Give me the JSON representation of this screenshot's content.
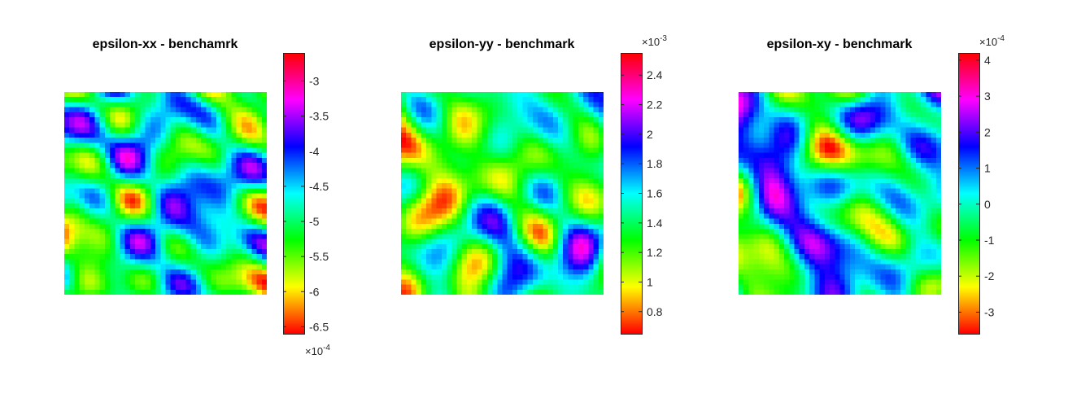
{
  "chart_data": [
    {
      "type": "heatmap",
      "title": "epsilon-xx - benchamrk",
      "grid": false,
      "colormap": "hsv",
      "seed": 11,
      "colorbar": {
        "lim": [
          -6.6,
          -2.6
        ],
        "ticks": [
          -3,
          -3.5,
          -4,
          -4.5,
          -5,
          -5.5,
          -6,
          -6.5
        ],
        "tick_labels": [
          "-3",
          "-3.5",
          "-4",
          "-4.5",
          "-5",
          "-5.5",
          "-6",
          "-6.5"
        ],
        "multiplier_base": "×10",
        "multiplier_exp": "-4",
        "multiplier_position": "bottom"
      },
      "values": null
    },
    {
      "type": "heatmap",
      "title": "epsilon-yy - benchmark",
      "grid": false,
      "colormap": "hsv",
      "seed": 23,
      "colorbar": {
        "lim": [
          0.65,
          2.55
        ],
        "ticks": [
          2.4,
          2.2,
          2,
          1.8,
          1.6,
          1.4,
          1.2,
          1,
          0.8
        ],
        "tick_labels": [
          "2.4",
          "2.2",
          "2",
          "1.8",
          "1.6",
          "1.4",
          "1.2",
          "1",
          "0.8"
        ],
        "multiplier_base": "×10",
        "multiplier_exp": "-3",
        "multiplier_position": "top"
      },
      "values": null
    },
    {
      "type": "heatmap",
      "title": "epsilon-xy - benchmark",
      "grid": false,
      "colormap": "hsv",
      "seed": 37,
      "colorbar": {
        "lim": [
          -3.6,
          4.2
        ],
        "ticks": [
          4,
          3,
          2,
          1,
          0,
          -1,
          -2,
          -3
        ],
        "tick_labels": [
          "4",
          "3",
          "2",
          "1",
          "0",
          "-1",
          "-2",
          "-3"
        ],
        "multiplier_base": "×10",
        "multiplier_exp": "-4",
        "multiplier_position": "top"
      },
      "values": null
    }
  ]
}
